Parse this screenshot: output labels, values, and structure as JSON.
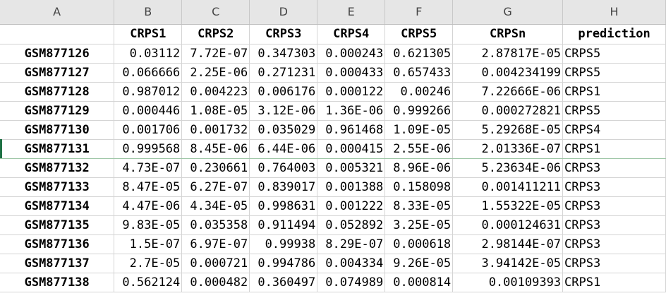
{
  "columns": [
    "A",
    "B",
    "C",
    "D",
    "E",
    "F",
    "G",
    "H"
  ],
  "headers": [
    "",
    "CRPS1",
    "CRPS2",
    "CRPS3",
    "CRPS4",
    "CRPS5",
    "CRPSn",
    "prediction"
  ],
  "rows": [
    [
      "GSM877126",
      "0.03112",
      "7.72E-07",
      "0.347303",
      "0.000243",
      "0.621305",
      "2.87817E-05",
      "CRPS5"
    ],
    [
      "GSM877127",
      "0.066666",
      "2.25E-06",
      "0.271231",
      "0.000433",
      "0.657433",
      "0.004234199",
      "CRPS5"
    ],
    [
      "GSM877128",
      "0.987012",
      "0.004223",
      "0.006176",
      "0.000122",
      "0.00246",
      "7.22666E-06",
      "CRPS1"
    ],
    [
      "GSM877129",
      "0.000446",
      "1.08E-05",
      "3.12E-06",
      "1.36E-06",
      "0.999266",
      "0.000272821",
      "CRPS5"
    ],
    [
      "GSM877130",
      "0.001706",
      "0.001732",
      "0.035029",
      "0.961468",
      "1.09E-05",
      "5.29268E-05",
      "CRPS4"
    ],
    [
      "GSM877131",
      "0.999568",
      "8.45E-06",
      "6.44E-06",
      "0.000415",
      "2.55E-06",
      "2.01336E-07",
      "CRPS1"
    ],
    [
      "GSM877132",
      "4.73E-07",
      "0.230661",
      "0.764003",
      "0.005321",
      "8.96E-06",
      "5.23634E-06",
      "CRPS3"
    ],
    [
      "GSM877133",
      "8.47E-05",
      "6.27E-07",
      "0.839017",
      "0.001388",
      "0.158098",
      "0.001411211",
      "CRPS3"
    ],
    [
      "GSM877134",
      "4.47E-06",
      "4.34E-05",
      "0.998631",
      "0.001222",
      "8.33E-05",
      "1.55322E-05",
      "CRPS3"
    ],
    [
      "GSM877135",
      "9.83E-05",
      "0.035358",
      "0.911494",
      "0.052892",
      "3.25E-05",
      "0.000124631",
      "CRPS3"
    ],
    [
      "GSM877136",
      "1.5E-07",
      "6.97E-07",
      "0.99938",
      "8.29E-07",
      "0.000618",
      "2.98144E-07",
      "CRPS3"
    ],
    [
      "GSM877137",
      "2.7E-05",
      "0.000721",
      "0.994786",
      "0.004334",
      "9.26E-05",
      "3.94142E-05",
      "CRPS3"
    ],
    [
      "GSM877138",
      "0.562124",
      "0.000482",
      "0.360497",
      "0.074989",
      "0.000814",
      "0.00109393",
      "CRPS1"
    ]
  ],
  "colors": {
    "column_header_bg": "#e6e6e6",
    "gridline": "#d4d4d4",
    "selection": "#1e7145"
  }
}
